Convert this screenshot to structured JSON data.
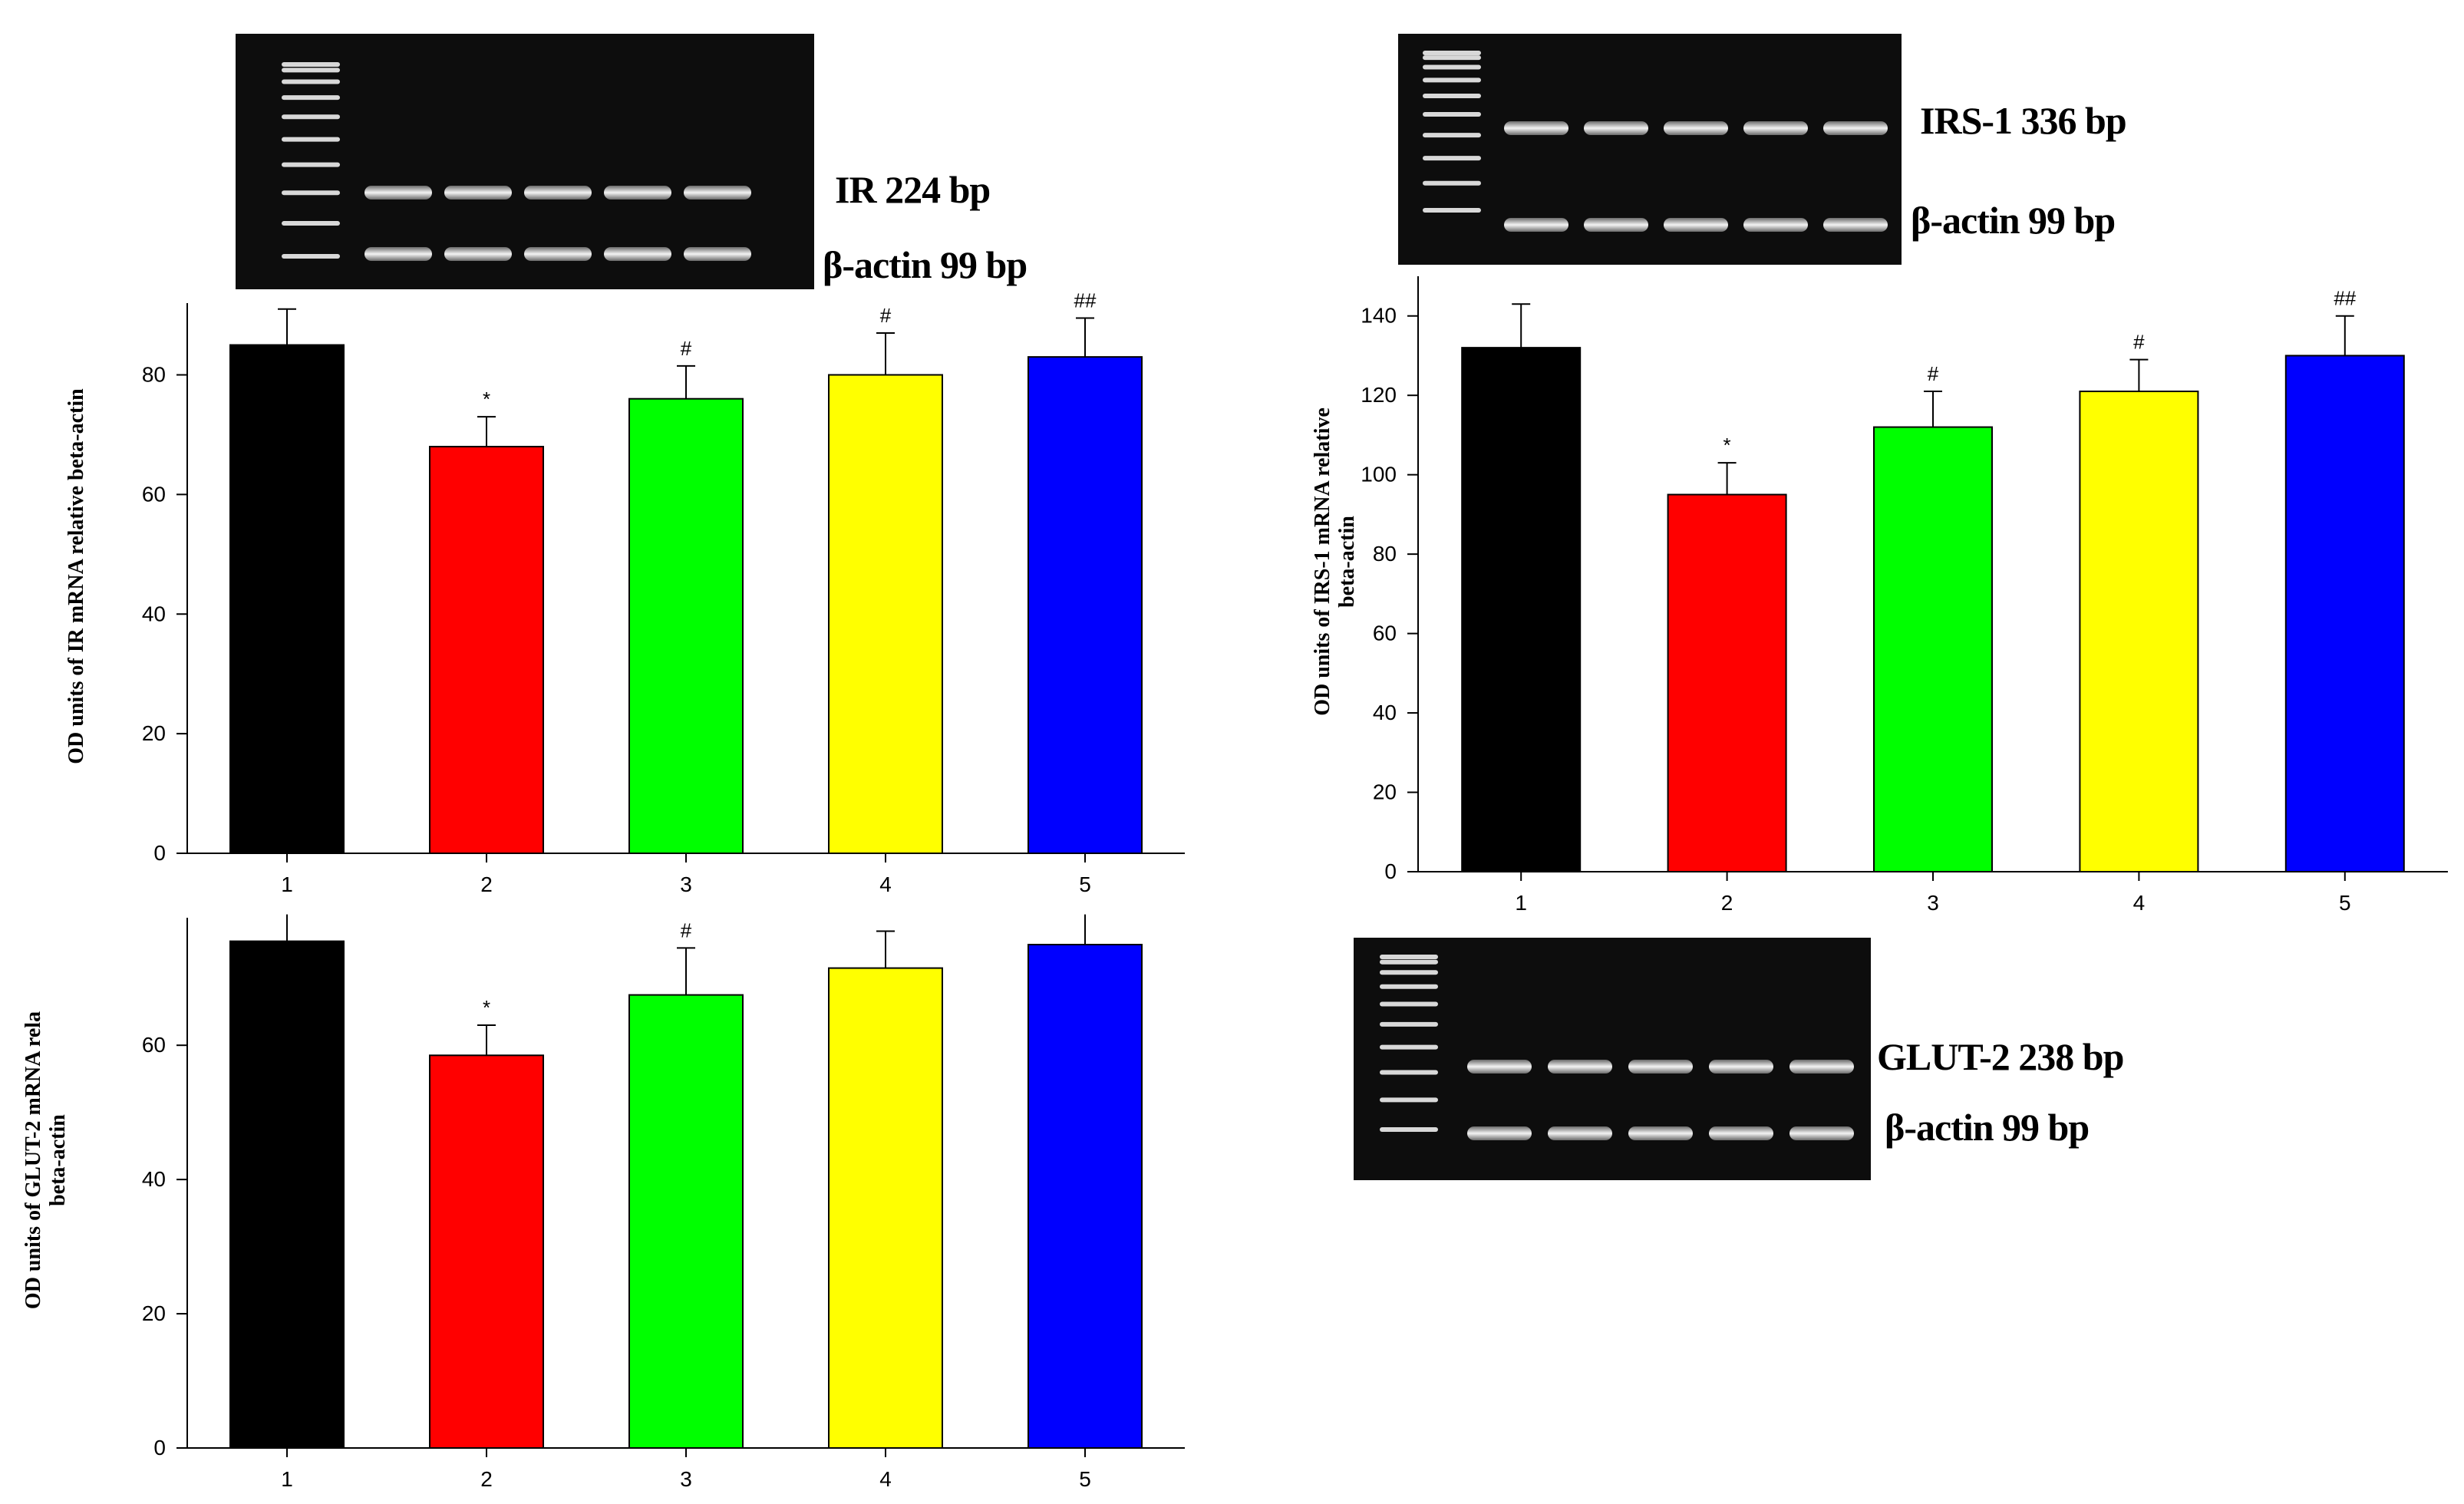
{
  "figure": {
    "panels": [
      {
        "id": "ir",
        "gel": {
          "band_label": "IR 224 bp",
          "reference_label": "β-actin 99 bp"
        },
        "chart_index": 0
      },
      {
        "id": "irs1",
        "gel": {
          "band_label": "IRS-1 336 bp",
          "reference_label": "β-actin 99 bp"
        },
        "chart_index": 1
      },
      {
        "id": "glut2",
        "gel": {
          "band_label": "GLUT-2 238 bp",
          "reference_label": "β-actin 99 bp"
        },
        "chart_index": 2
      }
    ]
  },
  "chart_data": [
    {
      "type": "bar",
      "title": "",
      "ylabel": "OD units of IR mRNA relative beta-actin",
      "xlabel": "",
      "categories": [
        "1",
        "2",
        "3",
        "4",
        "5"
      ],
      "values": [
        85,
        68,
        76,
        80,
        83
      ],
      "errors": [
        6,
        5,
        5.5,
        7,
        6.5
      ],
      "annotations": [
        "",
        "*",
        "#",
        "#",
        "##"
      ],
      "colors": [
        "#000000",
        "#ff0000",
        "#00ff00",
        "#ffff00",
        "#0000ff"
      ],
      "ylim": [
        0,
        92
      ],
      "yticks": [
        0,
        20,
        40,
        60,
        80
      ],
      "grid": false
    },
    {
      "type": "bar",
      "title": "",
      "ylabel": "OD units of IRS-1 mRNA relative beta-actin",
      "ylabel_lines": [
        "OD units of IRS-1 mRNA relative",
        "beta-actin"
      ],
      "xlabel": "",
      "categories": [
        "1",
        "2",
        "3",
        "4",
        "5"
      ],
      "values": [
        132,
        95,
        112,
        121,
        130
      ],
      "errors": [
        11,
        8,
        9,
        8,
        10
      ],
      "annotations": [
        "",
        "*",
        "#",
        "#",
        "##"
      ],
      "colors": [
        "#000000",
        "#ff0000",
        "#00ff00",
        "#ffff00",
        "#0000ff"
      ],
      "ylim": [
        0,
        150
      ],
      "yticks": [
        0,
        20,
        40,
        60,
        80,
        100,
        120,
        140
      ],
      "grid": false
    },
    {
      "type": "bar",
      "title": "",
      "ylabel": "OD units of GLUT-2 mRNA rela beta-actin",
      "ylabel_lines": [
        "OD units of GLUT-2 mRNA rela",
        "beta-actin"
      ],
      "xlabel": "",
      "categories": [
        "1",
        "2",
        "3",
        "4",
        "5"
      ],
      "values": [
        75.5,
        58.5,
        67.5,
        71.5,
        75
      ],
      "errors": [
        5,
        4.5,
        7,
        5.5,
        5.5
      ],
      "annotations": [
        "",
        "*",
        "#",
        "",
        ""
      ],
      "colors": [
        "#000000",
        "#ff0000",
        "#00ff00",
        "#ffff00",
        "#0000ff"
      ],
      "ylim": [
        0,
        79
      ],
      "yticks": [
        0,
        20,
        40,
        60
      ],
      "grid": false
    }
  ]
}
